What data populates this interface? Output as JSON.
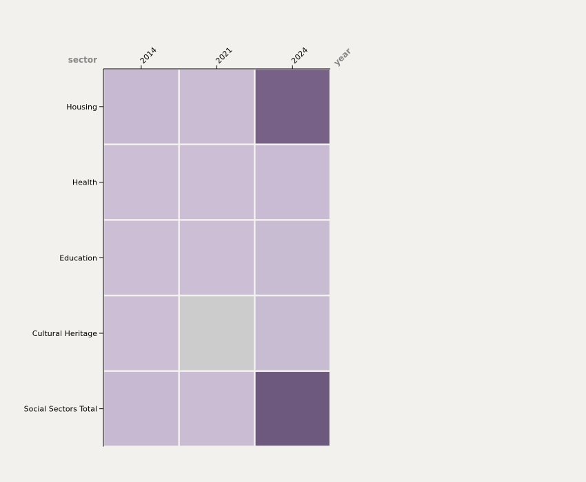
{
  "chart_data": {
    "type": "heatmap",
    "x_title": "year",
    "y_title": "sector",
    "x_categories": [
      "2014",
      "2021",
      "2024"
    ],
    "y_categories": [
      "Housing",
      "Health",
      "Education",
      "Cultural Heritage",
      "Social Sectors Total"
    ],
    "cells": [
      {
        "y": "Housing",
        "x": "2014",
        "color": "#c6b9d1"
      },
      {
        "y": "Housing",
        "x": "2021",
        "color": "#c9bcd3"
      },
      {
        "y": "Housing",
        "x": "2024",
        "color": "#776186"
      },
      {
        "y": "Health",
        "x": "2014",
        "color": "#cbbed5"
      },
      {
        "y": "Health",
        "x": "2021",
        "color": "#cbbed5"
      },
      {
        "y": "Health",
        "x": "2024",
        "color": "#c8bbd3"
      },
      {
        "y": "Education",
        "x": "2014",
        "color": "#cbbed5"
      },
      {
        "y": "Education",
        "x": "2021",
        "color": "#cbbed5"
      },
      {
        "y": "Education",
        "x": "2024",
        "color": "#c7bcd1"
      },
      {
        "y": "Cultural Heritage",
        "x": "2014",
        "color": "#cbbed5"
      },
      {
        "y": "Cultural Heritage",
        "x": "2021",
        "color": "#cccccc"
      },
      {
        "y": "Cultural Heritage",
        "x": "2024",
        "color": "#c7bcd1"
      },
      {
        "y": "Social Sectors Total",
        "x": "2014",
        "color": "#c6b9d1"
      },
      {
        "y": "Social Sectors Total",
        "x": "2021",
        "color": "#c9bcd3"
      },
      {
        "y": "Social Sectors Total",
        "x": "2024",
        "color": "#6e597e"
      }
    ],
    "missing_color": "#cccccc",
    "grid": false,
    "legend": "none",
    "x_axis_position": "top",
    "y_axis_position": "left"
  }
}
